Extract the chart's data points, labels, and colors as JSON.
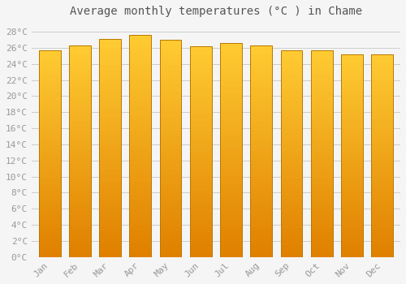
{
  "title": "Average monthly temperatures (°C ) in Chame",
  "categories": [
    "Jan",
    "Feb",
    "Mar",
    "Apr",
    "May",
    "Jun",
    "Jul",
    "Aug",
    "Sep",
    "Oct",
    "Nov",
    "Dec"
  ],
  "values": [
    25.7,
    26.3,
    27.1,
    27.6,
    27.0,
    26.2,
    26.6,
    26.3,
    25.7,
    25.7,
    25.2,
    25.2
  ],
  "bar_color_top": "#FFCC33",
  "bar_color_bottom": "#E08000",
  "bar_edge_color": "#B87800",
  "background_color": "#F5F5F5",
  "grid_color": "#CCCCCC",
  "text_color": "#999999",
  "title_color": "#555555",
  "ylim": [
    0,
    29
  ],
  "ytick_step": 2,
  "title_fontsize": 10,
  "tick_fontsize": 8,
  "bar_width": 0.72,
  "n_grad": 50
}
